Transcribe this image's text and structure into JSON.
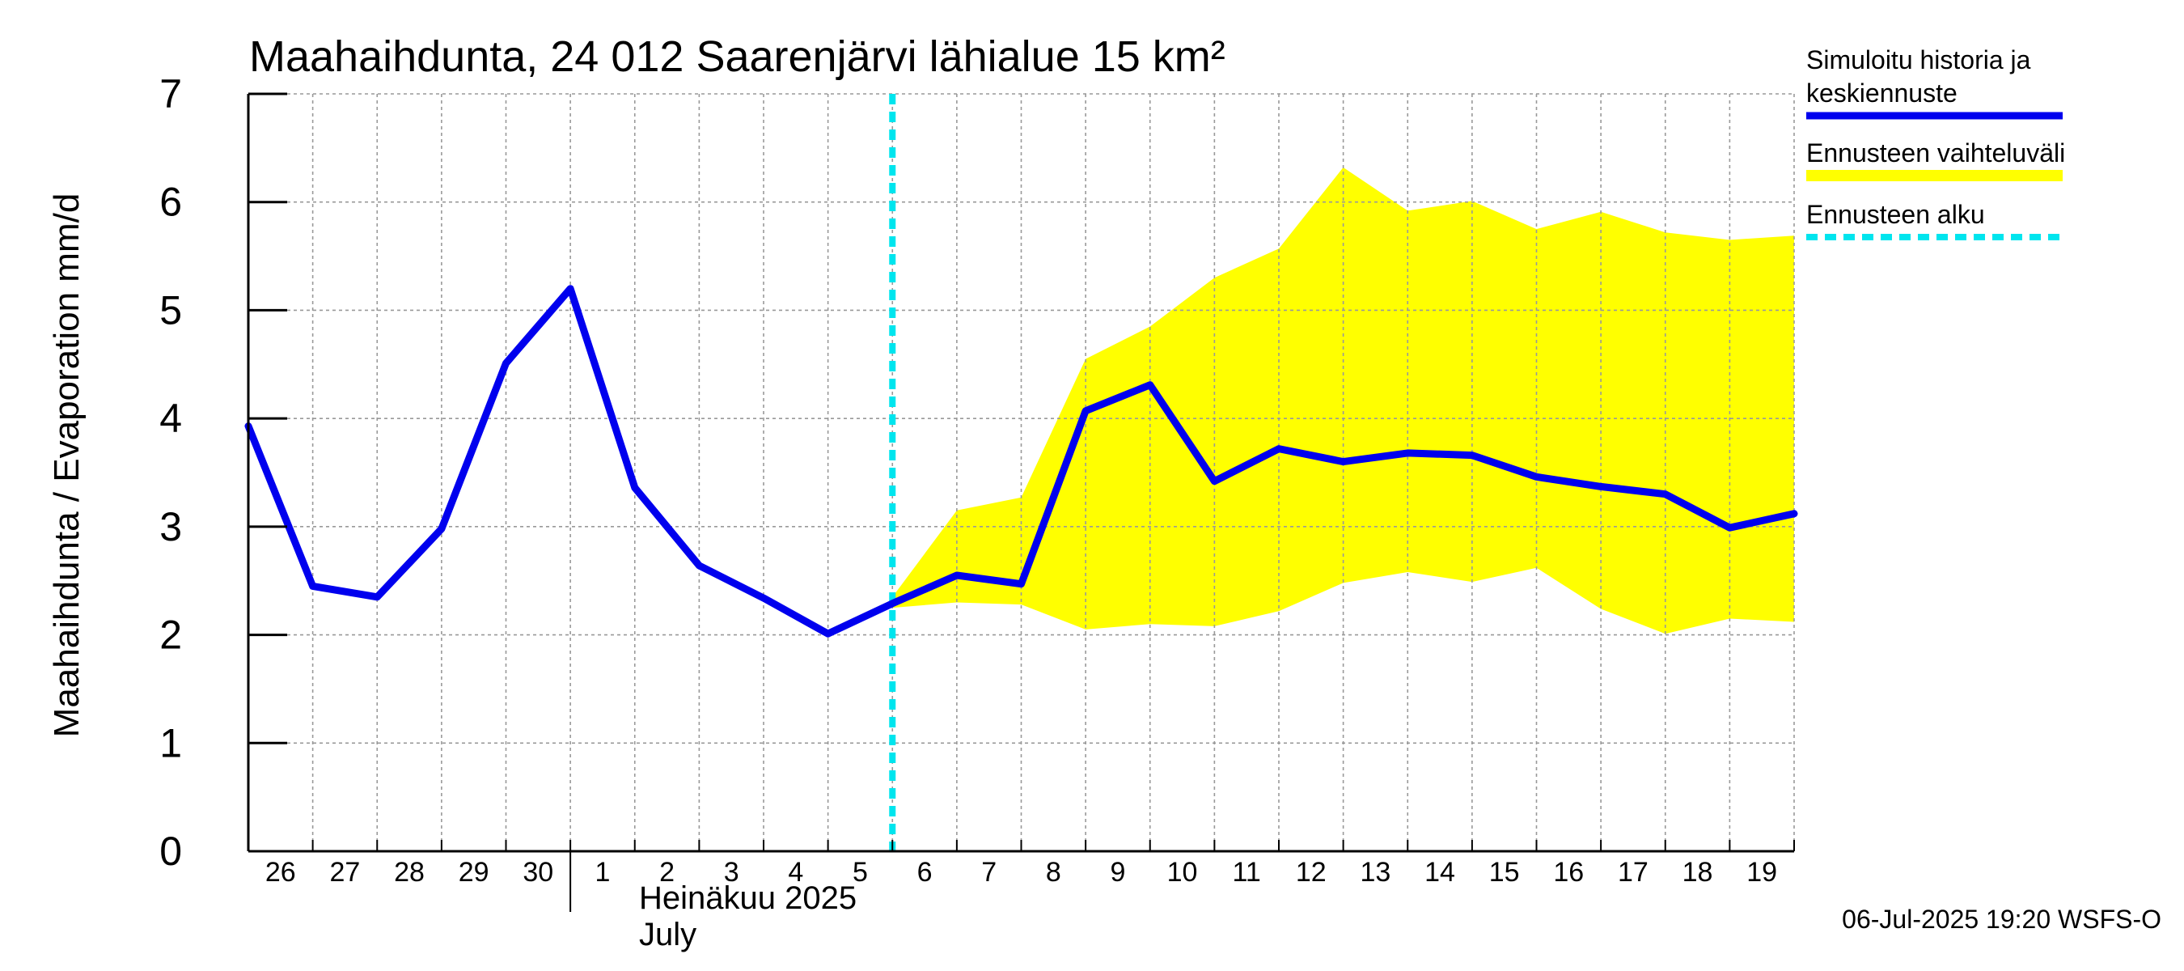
{
  "chart_data": {
    "type": "line",
    "title": "Maahaihdunta, 24 012 Saarenjärvi lähialue 15 km²",
    "ylabel": "Maahaihdunta / Evaporation   mm/d",
    "ylim": [
      0,
      7
    ],
    "yticks": [
      "0",
      "1",
      "2",
      "3",
      "4",
      "5",
      "6",
      "7"
    ],
    "grid": true,
    "x_labels": [
      "26",
      "27",
      "28",
      "29",
      "30",
      "1",
      "2",
      "3",
      "4",
      "5",
      "6",
      "7",
      "8",
      "9",
      "10",
      "11",
      "12",
      "13",
      "14",
      "15",
      "16",
      "17",
      "18",
      "19"
    ],
    "month_label_fi": "Heinäkuu  2025",
    "month_label_en": "July",
    "series": [
      {
        "name": "Simuloitu historia ja keskiennuste",
        "color": "#0000ee",
        "x": [
          "2025-06-26",
          "2025-06-27",
          "2025-06-28",
          "2025-06-29",
          "2025-06-30",
          "2025-07-01",
          "2025-07-02",
          "2025-07-03",
          "2025-07-04",
          "2025-07-05",
          "2025-07-06",
          "2025-07-07",
          "2025-07-08",
          "2025-07-09",
          "2025-07-10",
          "2025-07-11",
          "2025-07-12",
          "2025-07-13",
          "2025-07-14",
          "2025-07-15",
          "2025-07-16",
          "2025-07-17",
          "2025-07-18",
          "2025-07-19",
          "2025-07-20"
        ],
        "values": [
          3.93,
          2.45,
          2.35,
          2.98,
          4.51,
          5.2,
          3.36,
          2.64,
          2.34,
          2.01,
          2.29,
          2.55,
          2.47,
          4.07,
          4.31,
          3.42,
          3.72,
          3.6,
          3.68,
          3.66,
          3.46,
          3.37,
          3.3,
          2.99,
          3.12
        ]
      },
      {
        "name": "Ennusteen vaihteluväli",
        "color": "#ffff00",
        "x": [
          "2025-07-06",
          "2025-07-07",
          "2025-07-08",
          "2025-07-09",
          "2025-07-10",
          "2025-07-11",
          "2025-07-12",
          "2025-07-13",
          "2025-07-14",
          "2025-07-15",
          "2025-07-16",
          "2025-07-17",
          "2025-07-18",
          "2025-07-19",
          "2025-07-20"
        ],
        "upper": [
          2.35,
          3.15,
          3.27,
          4.55,
          4.85,
          5.3,
          5.57,
          6.32,
          5.92,
          6.01,
          5.75,
          5.91,
          5.72,
          5.65,
          5.69
        ],
        "lower": [
          2.25,
          2.3,
          2.28,
          2.05,
          2.1,
          2.08,
          2.22,
          2.48,
          2.58,
          2.49,
          2.62,
          2.24,
          2.01,
          2.15,
          2.12
        ]
      }
    ],
    "forecast_start": {
      "name": "Ennusteen alku",
      "x": "2025-07-06",
      "color": "#00e5ee"
    }
  },
  "legend": {
    "items": [
      {
        "line1": "Simuloitu historia ja",
        "line2": "keskiennuste",
        "color": "#0000ee",
        "style": "solid"
      },
      {
        "line1": "Ennusteen vaihteluväli",
        "line2": "",
        "color": "#ffff00",
        "style": "solid"
      },
      {
        "line1": "Ennusteen alku",
        "line2": "",
        "color": "#00e5ee",
        "style": "dashed"
      }
    ]
  },
  "footer": "06-Jul-2025 19:20 WSFS-O"
}
